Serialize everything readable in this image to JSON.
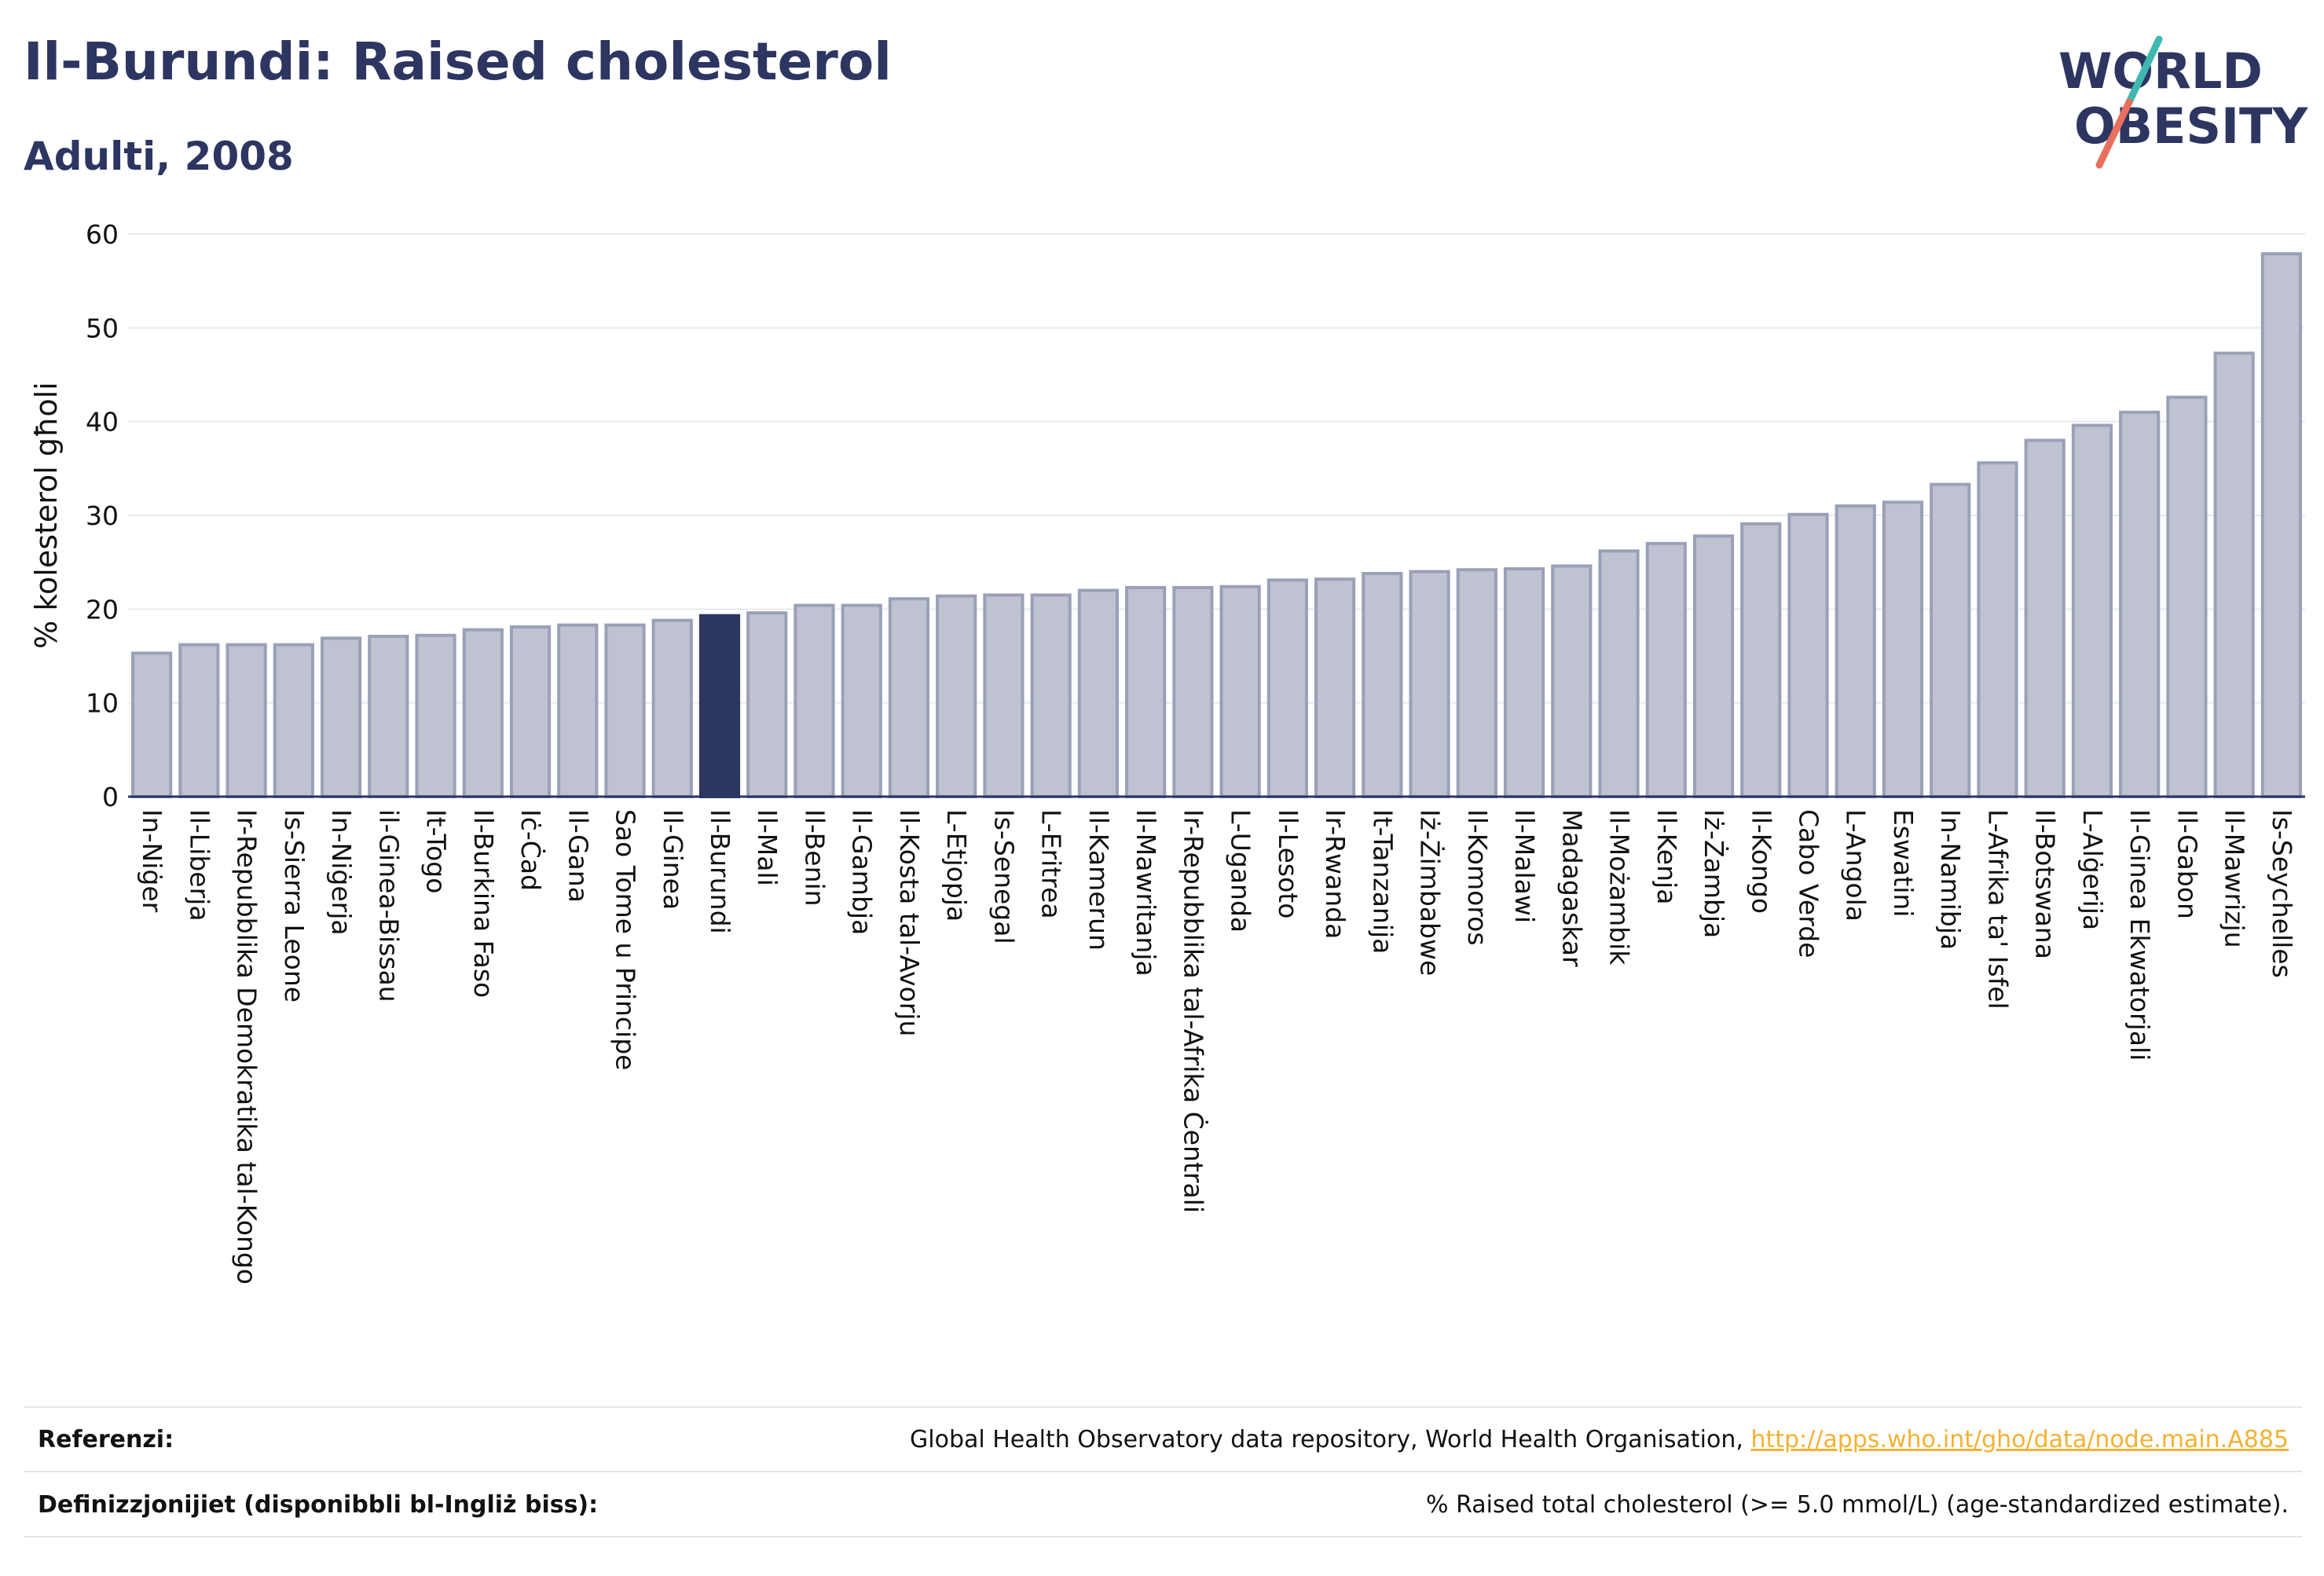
{
  "header": {
    "title": "Il-Burundi: Raised cholesterol",
    "subtitle": "Adulti, 2008"
  },
  "logo": {
    "line1": "WORLD",
    "line2": "OBESITY"
  },
  "colors": {
    "bar": "#bfc3d1",
    "bar_stroke": "#9aa0b8",
    "highlight": "#2d3561",
    "grid": "#e8eaf0",
    "accent_teal": "#3fb8b0",
    "accent_coral": "#e8705e"
  },
  "chart_data": {
    "type": "bar",
    "ylabel": "% kolesterol għoli",
    "ylim": [
      0,
      60
    ],
    "yticks": [
      0,
      10,
      20,
      30,
      40,
      50,
      60
    ],
    "grid": true,
    "highlight": "Il-Burundi",
    "categories": [
      "In-Niġer",
      "Il-Liberja",
      "Ir-Repubblika Demokratika tal-Kongo",
      "Is-Sierra Leone",
      "In-Niġerja",
      "il-Ginea-Bissau",
      "It-Togo",
      "Il-Burkina Faso",
      "Iċ-Ċad",
      "Il-Gana",
      "Sao Tome u Principe",
      "Il-Ginea",
      "Il-Burundi",
      "Il-Mali",
      "Il-Benin",
      "Il-Gambja",
      "Il-Kosta tal-Avorju",
      "L-Etjopja",
      "Is-Senegal",
      "L-Eritrea",
      "Il-Kamerun",
      "Il-Mawritanja",
      "Ir-Repubblika tal-Afrika Ċentrali",
      "L-Uganda",
      "Il-Lesoto",
      "Ir-Rwanda",
      "It-Tanzanija",
      "Iż-Żimbabwe",
      "Il-Komoros",
      "Il-Malawi",
      "Madagaskar",
      "Il-Możambik",
      "Il-Kenja",
      "Iż-Żambja",
      "Il-Kongo",
      "Cabo Verde",
      "L-Angola",
      "Eswatini",
      "In-Namibja",
      "L-Afrika ta' Isfel",
      "Il-Botswana",
      "L-Alġerija",
      "Il-Ginea Ekwatorjali",
      "Il-Gabon",
      "Il-Mawrizju",
      "Is-Seychelles"
    ],
    "values": [
      15.3,
      16.2,
      16.2,
      16.2,
      16.9,
      17.1,
      17.2,
      17.8,
      18.1,
      18.3,
      18.3,
      18.8,
      19.3,
      19.6,
      20.4,
      20.4,
      21.1,
      21.4,
      21.5,
      21.5,
      22.0,
      22.3,
      22.3,
      22.4,
      23.1,
      23.2,
      23.8,
      24.0,
      24.2,
      24.3,
      24.6,
      26.2,
      27.0,
      27.8,
      29.1,
      30.1,
      31.0,
      31.4,
      33.3,
      35.6,
      38.0,
      39.6,
      41.0,
      42.6,
      47.3,
      57.9
    ]
  },
  "footer": {
    "ref_label": "Referenzi:",
    "ref_text": "Global Health Observatory data repository, World Health Organisation, ",
    "ref_link": "http://apps.who.int/gho/data/node.main.A885",
    "def_label": "Definizzjonijiet (disponibbli bl-Ingliż biss):",
    "def_text": "% Raised total cholesterol (>= 5.0 mmol/L) (age-standardized estimate)."
  }
}
